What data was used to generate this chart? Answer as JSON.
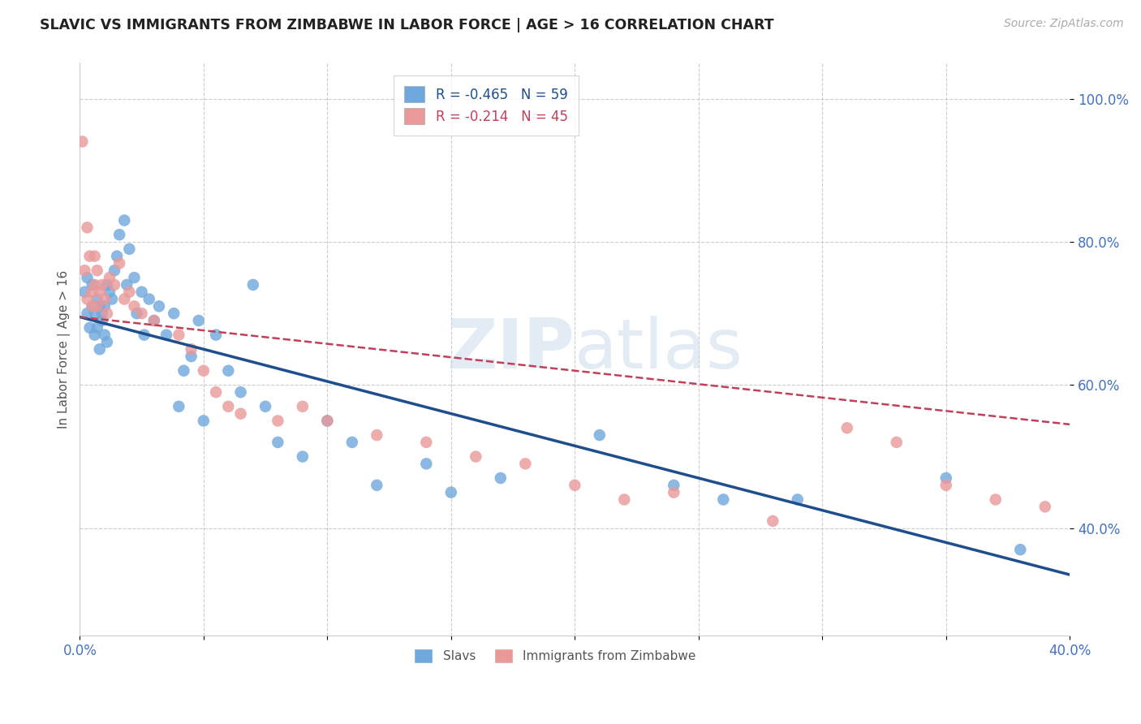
{
  "title": "SLAVIC VS IMMIGRANTS FROM ZIMBABWE IN LABOR FORCE | AGE > 16 CORRELATION CHART",
  "source": "Source: ZipAtlas.com",
  "ylabel": "In Labor Force | Age > 16",
  "xlim": [
    0.0,
    0.4
  ],
  "ylim": [
    0.25,
    1.05
  ],
  "x_ticks": [
    0.0,
    0.05,
    0.1,
    0.15,
    0.2,
    0.25,
    0.3,
    0.35,
    0.4
  ],
  "y_ticks": [
    0.4,
    0.6,
    0.8,
    1.0
  ],
  "y_tick_labels": [
    "40.0%",
    "60.0%",
    "80.0%",
    "100.0%"
  ],
  "slavs_r": -0.465,
  "slavs_n": 59,
  "zimb_r": -0.214,
  "zimb_n": 45,
  "slavs_color": "#6fa8dc",
  "zimb_color": "#ea9999",
  "slavs_line_color": "#1f4e8c",
  "zimb_line_color": "#c0405a",
  "background_color": "#ffffff",
  "grid_color": "#cccccc",
  "slavs_x": [
    0.002,
    0.003,
    0.003,
    0.004,
    0.005,
    0.005,
    0.006,
    0.006,
    0.007,
    0.007,
    0.008,
    0.008,
    0.009,
    0.009,
    0.01,
    0.01,
    0.011,
    0.011,
    0.012,
    0.013,
    0.014,
    0.015,
    0.016,
    0.018,
    0.019,
    0.02,
    0.022,
    0.023,
    0.025,
    0.026,
    0.028,
    0.03,
    0.032,
    0.035,
    0.038,
    0.04,
    0.042,
    0.045,
    0.048,
    0.05,
    0.055,
    0.06,
    0.065,
    0.07,
    0.075,
    0.08,
    0.09,
    0.1,
    0.11,
    0.12,
    0.14,
    0.15,
    0.17,
    0.21,
    0.24,
    0.26,
    0.29,
    0.35,
    0.38
  ],
  "slavs_y": [
    0.73,
    0.7,
    0.75,
    0.68,
    0.71,
    0.74,
    0.7,
    0.67,
    0.72,
    0.68,
    0.71,
    0.65,
    0.7,
    0.69,
    0.71,
    0.67,
    0.74,
    0.66,
    0.73,
    0.72,
    0.76,
    0.78,
    0.81,
    0.83,
    0.74,
    0.79,
    0.75,
    0.7,
    0.73,
    0.67,
    0.72,
    0.69,
    0.71,
    0.67,
    0.7,
    0.57,
    0.62,
    0.64,
    0.69,
    0.55,
    0.67,
    0.62,
    0.59,
    0.74,
    0.57,
    0.52,
    0.5,
    0.55,
    0.52,
    0.46,
    0.49,
    0.45,
    0.47,
    0.53,
    0.46,
    0.44,
    0.44,
    0.47,
    0.37
  ],
  "slavs_line_x": [
    0.0,
    0.4
  ],
  "slavs_line_y": [
    0.695,
    0.335
  ],
  "zimb_x": [
    0.001,
    0.002,
    0.003,
    0.003,
    0.004,
    0.005,
    0.005,
    0.006,
    0.006,
    0.007,
    0.007,
    0.008,
    0.009,
    0.01,
    0.011,
    0.012,
    0.014,
    0.016,
    0.018,
    0.02,
    0.022,
    0.025,
    0.03,
    0.04,
    0.045,
    0.05,
    0.055,
    0.06,
    0.065,
    0.08,
    0.09,
    0.1,
    0.12,
    0.14,
    0.16,
    0.18,
    0.2,
    0.22,
    0.24,
    0.28,
    0.31,
    0.33,
    0.35,
    0.37,
    0.39
  ],
  "zimb_y": [
    0.94,
    0.76,
    0.82,
    0.72,
    0.78,
    0.73,
    0.71,
    0.78,
    0.74,
    0.76,
    0.71,
    0.73,
    0.74,
    0.72,
    0.7,
    0.75,
    0.74,
    0.77,
    0.72,
    0.73,
    0.71,
    0.7,
    0.69,
    0.67,
    0.65,
    0.62,
    0.59,
    0.57,
    0.56,
    0.55,
    0.57,
    0.55,
    0.53,
    0.52,
    0.5,
    0.49,
    0.46,
    0.44,
    0.45,
    0.41,
    0.54,
    0.52,
    0.46,
    0.44,
    0.43
  ],
  "zimb_line_x": [
    0.0,
    0.4
  ],
  "zimb_line_y": [
    0.695,
    0.545
  ]
}
